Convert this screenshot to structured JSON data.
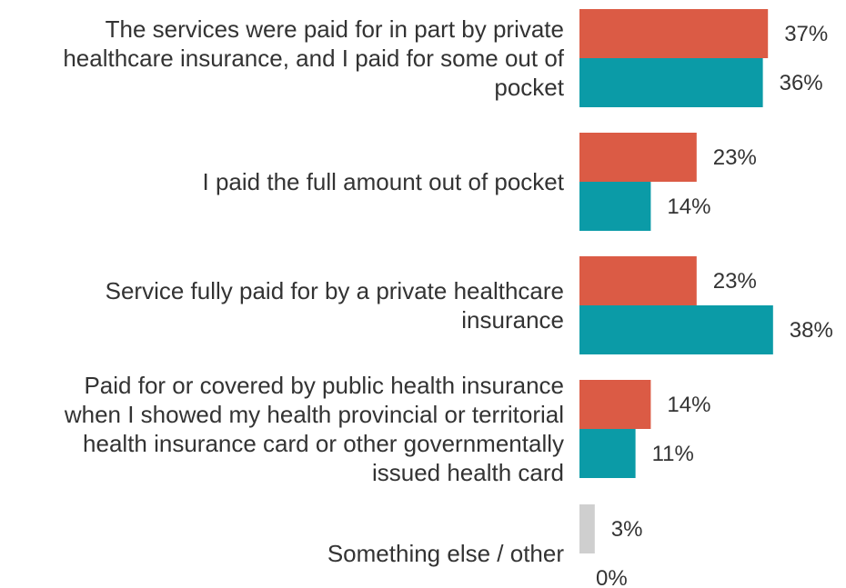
{
  "chart_data": {
    "type": "bar",
    "orientation": "horizontal",
    "title": "",
    "xlabel": "",
    "ylabel": "",
    "xlim": [
      0,
      100
    ],
    "grid": false,
    "legend": "none",
    "value_format": "percent",
    "categories": [
      {
        "lines": [
          "The services were paid for in part by private",
          "healthcare insurance, and I paid for some out of",
          "pocket"
        ]
      },
      {
        "lines": [
          "I paid the full amount out of pocket"
        ]
      },
      {
        "lines": [
          "Service fully paid for by a private healthcare",
          "insurance"
        ]
      },
      {
        "lines": [
          "Paid for or covered by public health insurance",
          "when I showed my health provincial or territorial",
          "health insurance card or other governmentally",
          "issued health card"
        ]
      },
      {
        "lines": [
          "Something else / other"
        ]
      }
    ],
    "series": [
      {
        "color": "#db5b45",
        "last_category_color": "#cfcfcf",
        "values": [
          37,
          23,
          23,
          14,
          3
        ]
      },
      {
        "color": "#0b9ba7",
        "last_category_color": "#cfcfcf",
        "values": [
          36,
          14,
          38,
          11,
          0
        ]
      }
    ],
    "value_labels": [
      [
        "37%",
        "23%",
        "23%",
        "14%",
        "3%"
      ],
      [
        "36%",
        "14%",
        "38%",
        "11%",
        "0%"
      ]
    ]
  }
}
